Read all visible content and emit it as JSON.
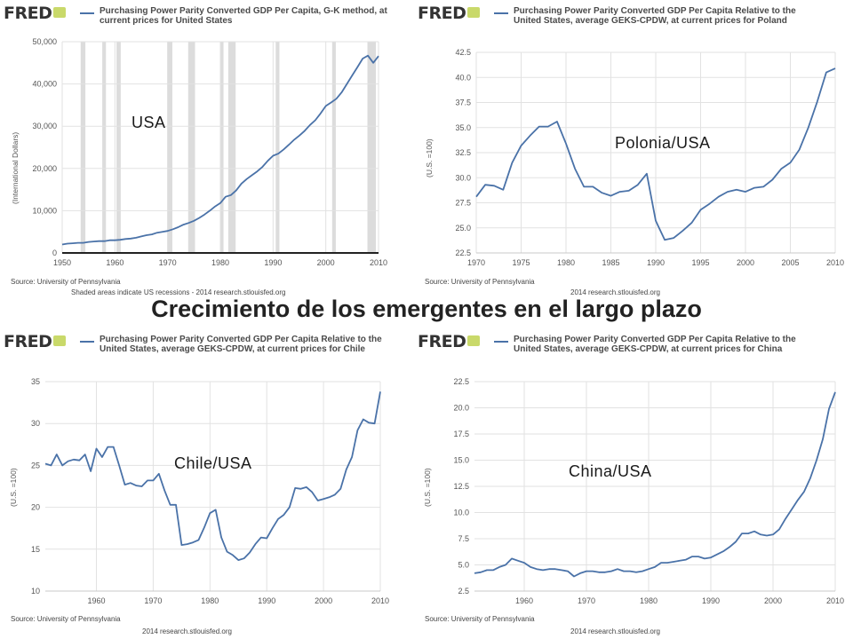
{
  "main_title": "Crecimiento de los emergentes en el largo plazo",
  "colors": {
    "series": "#4a72a8",
    "recession": "#dcdcdc",
    "grid": "#e2e2e2",
    "logo": "#333333"
  },
  "panels": [
    {
      "logo": "FRED",
      "title": "Purchasing Power Parity Converted GDP Per Capita, G-K method, at current prices for United States",
      "ylabel": "(International Dollars)",
      "source": "Source: University of Pennsylvania",
      "credit": "Shaded areas indicate US recessions - 2014 research.stlouisfed.org",
      "overlay": "USA"
    },
    {
      "logo": "FRED",
      "title": "Purchasing Power Parity Converted GDP Per Capita Relative to the United States, average GEKS-CPDW, at current prices for Poland",
      "ylabel": "(U.S. =100)",
      "source": "Source: University of Pennsylvania",
      "credit": "2014 research.stlouisfed.org",
      "overlay": "Polonia/USA"
    },
    {
      "logo": "FRED",
      "title": "Purchasing Power Parity Converted GDP Per Capita Relative to the United States, average GEKS-CPDW, at current prices for Chile",
      "ylabel": "(U.S. =100)",
      "source": "Source: University of Pennsylvania",
      "credit": "2014 research.stlouisfed.org",
      "overlay": "Chile/USA"
    },
    {
      "logo": "FRED",
      "title": "Purchasing Power Parity Converted GDP Per Capita Relative to the United States, average GEKS-CPDW, at current prices for China",
      "ylabel": "(U.S. =100)",
      "source": "Source: University of Pennsylvania",
      "credit": "2014 research.stlouisfed.org",
      "overlay": "China/USA"
    }
  ],
  "chart_data": [
    {
      "type": "line",
      "xlim": [
        1950,
        2010
      ],
      "ylim": [
        0,
        50000
      ],
      "xticks": [
        "1950",
        "1960",
        "1970",
        "1980",
        "1990",
        "2000",
        "2010"
      ],
      "yticks": [
        "0",
        "10,000",
        "20,000",
        "30,000",
        "40,000",
        "50,000"
      ],
      "grid": true,
      "recessions": [
        [
          1953.5,
          1954.4
        ],
        [
          1957.6,
          1958.3
        ],
        [
          1960.3,
          1961.1
        ],
        [
          1969.9,
          1970.9
        ],
        [
          1973.9,
          1975.2
        ],
        [
          1980.0,
          1980.6
        ],
        [
          1981.5,
          1982.9
        ],
        [
          1990.5,
          1991.2
        ],
        [
          2001.2,
          2001.9
        ],
        [
          2007.9,
          2009.5
        ]
      ],
      "x": [
        1950,
        1951,
        1952,
        1953,
        1954,
        1955,
        1956,
        1957,
        1958,
        1959,
        1960,
        1961,
        1962,
        1963,
        1964,
        1965,
        1966,
        1967,
        1968,
        1969,
        1970,
        1971,
        1972,
        1973,
        1974,
        1975,
        1976,
        1977,
        1978,
        1979,
        1980,
        1981,
        1982,
        1983,
        1984,
        1985,
        1986,
        1987,
        1988,
        1989,
        1990,
        1991,
        1992,
        1993,
        1994,
        1995,
        1996,
        1997,
        1998,
        1999,
        2000,
        2001,
        2002,
        2003,
        2004,
        2005,
        2006,
        2007,
        2008,
        2009,
        2010
      ],
      "y": [
        2000,
        2200,
        2300,
        2400,
        2400,
        2600,
        2700,
        2800,
        2800,
        3000,
        3000,
        3100,
        3300,
        3400,
        3600,
        3900,
        4200,
        4400,
        4800,
        5000,
        5200,
        5600,
        6100,
        6700,
        7100,
        7600,
        8300,
        9100,
        10000,
        11000,
        11800,
        13300,
        13700,
        14800,
        16400,
        17500,
        18400,
        19300,
        20400,
        21800,
        23000,
        23500,
        24500,
        25600,
        26800,
        27800,
        28900,
        30300,
        31400,
        33000,
        34800,
        35600,
        36500,
        38000,
        40000,
        42000,
        44000,
        46000,
        46700,
        45000,
        46600
      ]
    },
    {
      "type": "line",
      "xlim": [
        1970,
        2010
      ],
      "ylim": [
        22.5,
        42.5
      ],
      "xticks": [
        "1970",
        "1975",
        "1980",
        "1985",
        "1990",
        "1995",
        "2000",
        "2005",
        "2010"
      ],
      "yticks": [
        "22.5",
        "25.0",
        "27.5",
        "30.0",
        "32.5",
        "35.0",
        "37.5",
        "40.0",
        "42.5"
      ],
      "grid": true,
      "x": [
        1970,
        1971,
        1972,
        1973,
        1974,
        1975,
        1976,
        1977,
        1978,
        1979,
        1980,
        1981,
        1982,
        1983,
        1984,
        1985,
        1986,
        1987,
        1988,
        1989,
        1990,
        1991,
        1992,
        1993,
        1994,
        1995,
        1996,
        1997,
        1998,
        1999,
        2000,
        2001,
        2002,
        2003,
        2004,
        2005,
        2006,
        2007,
        2008,
        2009,
        2010
      ],
      "y": [
        28.1,
        29.3,
        29.2,
        28.8,
        31.5,
        33.2,
        34.2,
        35.1,
        35.1,
        35.6,
        33.4,
        30.9,
        29.1,
        29.1,
        28.5,
        28.2,
        28.6,
        28.7,
        29.3,
        30.4,
        25.7,
        23.8,
        24.0,
        24.7,
        25.5,
        26.8,
        27.4,
        28.1,
        28.6,
        28.8,
        28.6,
        29.0,
        29.1,
        29.8,
        30.9,
        31.5,
        32.8,
        35.0,
        37.6,
        40.5,
        40.9
      ]
    },
    {
      "type": "line",
      "xlim": [
        1951,
        2010
      ],
      "ylim": [
        10,
        35
      ],
      "xticks": [
        "1960",
        "1970",
        "1980",
        "1990",
        "2000",
        "2010"
      ],
      "yticks": [
        "10",
        "15",
        "20",
        "25",
        "30",
        "35"
      ],
      "grid": true,
      "x": [
        1951,
        1952,
        1953,
        1954,
        1955,
        1956,
        1957,
        1958,
        1959,
        1960,
        1961,
        1962,
        1963,
        1964,
        1965,
        1966,
        1967,
        1968,
        1969,
        1970,
        1971,
        1972,
        1973,
        1974,
        1975,
        1976,
        1977,
        1978,
        1979,
        1980,
        1981,
        1982,
        1983,
        1984,
        1985,
        1986,
        1987,
        1988,
        1989,
        1990,
        1991,
        1992,
        1993,
        1994,
        1995,
        1996,
        1997,
        1998,
        1999,
        2000,
        2001,
        2002,
        2003,
        2004,
        2005,
        2006,
        2007,
        2008,
        2009,
        2010
      ],
      "y": [
        25.2,
        25.0,
        26.3,
        25.0,
        25.5,
        25.7,
        25.6,
        26.3,
        24.3,
        27.0,
        26.0,
        27.2,
        27.2,
        25.0,
        22.7,
        22.9,
        22.6,
        22.5,
        23.2,
        23.2,
        24.0,
        22.0,
        20.3,
        20.3,
        15.5,
        15.6,
        15.8,
        16.1,
        17.6,
        19.3,
        19.7,
        16.4,
        14.7,
        14.3,
        13.7,
        13.9,
        14.6,
        15.6,
        16.4,
        16.3,
        17.5,
        18.6,
        19.1,
        20.0,
        22.3,
        22.2,
        22.4,
        21.8,
        20.8,
        21.0,
        21.2,
        21.5,
        22.2,
        24.5,
        26.0,
        29.2,
        30.5,
        30.1,
        30.0,
        33.8
      ]
    },
    {
      "type": "line",
      "xlim": [
        1952,
        2010
      ],
      "ylim": [
        2.5,
        22.5
      ],
      "xticks": [
        "1960",
        "1970",
        "1980",
        "1990",
        "2000",
        "2010"
      ],
      "yticks": [
        "2.5",
        "5.0",
        "7.5",
        "10.0",
        "12.5",
        "15.0",
        "17.5",
        "20.0",
        "22.5"
      ],
      "grid": true,
      "x": [
        1952,
        1953,
        1954,
        1955,
        1956,
        1957,
        1958,
        1959,
        1960,
        1961,
        1962,
        1963,
        1964,
        1965,
        1966,
        1967,
        1968,
        1969,
        1970,
        1971,
        1972,
        1973,
        1974,
        1975,
        1976,
        1977,
        1978,
        1979,
        1980,
        1981,
        1982,
        1983,
        1984,
        1985,
        1986,
        1987,
        1988,
        1989,
        1990,
        1991,
        1992,
        1993,
        1994,
        1995,
        1996,
        1997,
        1998,
        1999,
        2000,
        2001,
        2002,
        2003,
        2004,
        2005,
        2006,
        2007,
        2008,
        2009,
        2010
      ],
      "y": [
        4.2,
        4.3,
        4.5,
        4.5,
        4.8,
        5.0,
        5.6,
        5.4,
        5.2,
        4.8,
        4.6,
        4.5,
        4.6,
        4.6,
        4.5,
        4.4,
        3.9,
        4.2,
        4.4,
        4.4,
        4.3,
        4.3,
        4.4,
        4.6,
        4.4,
        4.4,
        4.3,
        4.4,
        4.6,
        4.8,
        5.2,
        5.2,
        5.3,
        5.4,
        5.5,
        5.8,
        5.8,
        5.6,
        5.7,
        6.0,
        6.3,
        6.7,
        7.2,
        8.0,
        8.0,
        8.2,
        7.9,
        7.8,
        7.9,
        8.4,
        9.4,
        10.3,
        11.2,
        12.0,
        13.3,
        15.0,
        17.0,
        19.9,
        21.5
      ]
    }
  ]
}
